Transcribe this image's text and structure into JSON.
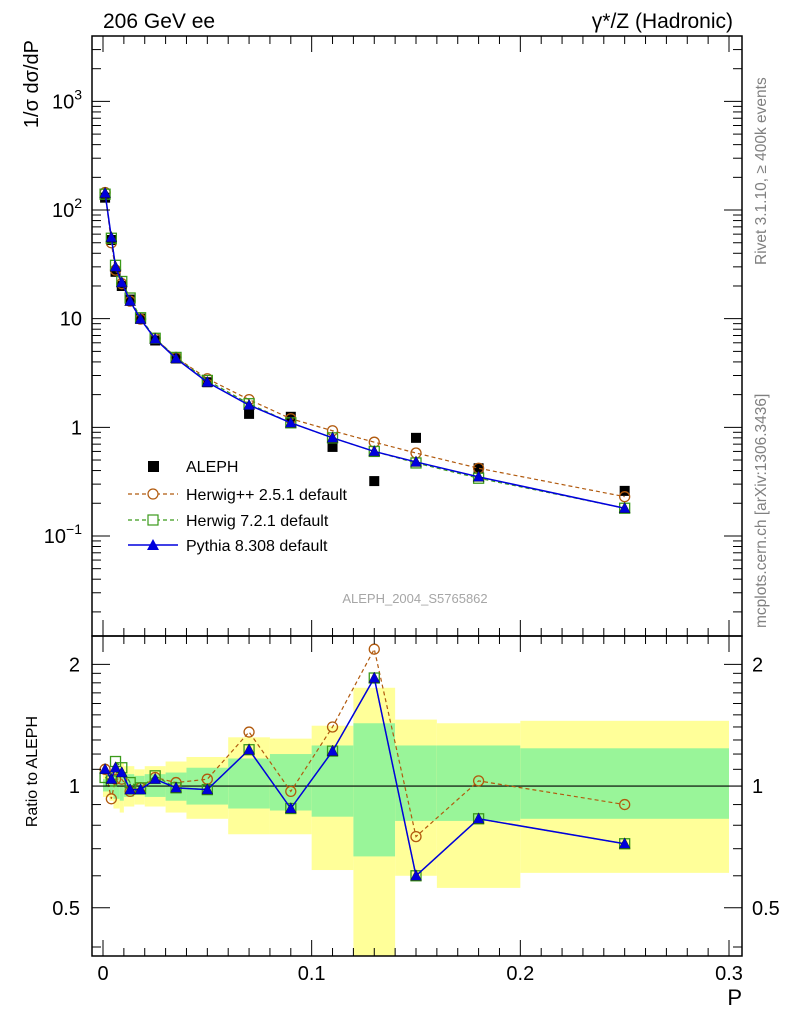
{
  "header": {
    "left_title": "206 GeV ee",
    "right_title": "γ*/Z (Hadronic)"
  },
  "side_labels": {
    "rivet": "Rivet 3.1.10, ≥ 400k events",
    "mcplots": "mcplots.cern.ch [arXiv:1306.3436]"
  },
  "watermark": "ALEPH_2004_S5765862",
  "colors": {
    "aleph": "#000000",
    "herwigpp": "#b15a0e",
    "herwig7": "#3b9a1a",
    "pythia": "#0000dd",
    "band_inner": "#99f599",
    "band_outer": "#ffff99"
  },
  "chart_data": [
    {
      "type": "scatter",
      "panel": "main",
      "yscale": "log",
      "ylabel": "1/σ  dσ/dP",
      "xlim": [
        0,
        0.3
      ],
      "ylim": [
        0.012,
        4000
      ],
      "ytick_labels": [
        {
          "value": 0.1,
          "base": "10",
          "exp": "−1"
        },
        {
          "value": 1,
          "base": "1",
          "exp": ""
        },
        {
          "value": 10,
          "base": "10",
          "exp": ""
        },
        {
          "value": 100,
          "base": "10",
          "exp": "2"
        },
        {
          "value": 1000,
          "base": "10",
          "exp": "3"
        }
      ],
      "x": [
        0.001,
        0.004,
        0.006,
        0.009,
        0.013,
        0.018,
        0.025,
        0.035,
        0.05,
        0.07,
        0.09,
        0.11,
        0.13,
        0.15,
        0.18,
        0.25
      ],
      "series": [
        {
          "name": "ALEPH",
          "key": "aleph",
          "marker": "square-filled",
          "values": [
            130,
            53,
            27,
            20,
            15,
            10,
            6.3,
            4.3,
            2.6,
            1.33,
            1.25,
            0.66,
            0.32,
            0.8,
            0.42,
            0.26
          ]
        },
        {
          "name": "Herwig++ 2.5.1 default",
          "key": "herwigpp",
          "marker": "circle-open",
          "dash": true,
          "values": [
            145,
            50,
            28,
            21,
            14.5,
            9.9,
            6.6,
            4.4,
            2.8,
            1.8,
            1.2,
            0.93,
            0.73,
            0.58,
            0.42,
            0.23
          ]
        },
        {
          "name": "Herwig 7.2.1 default",
          "key": "herwig7",
          "marker": "square-open",
          "dash": true,
          "values": [
            140,
            55,
            31,
            22,
            15.5,
            10.2,
            6.6,
            4.4,
            2.7,
            1.65,
            1.1,
            0.8,
            0.6,
            0.47,
            0.34,
            0.18
          ]
        },
        {
          "name": "Pythia 8.308 default",
          "key": "pythia",
          "marker": "triangle-filled",
          "dash": false,
          "values": [
            143,
            56,
            30,
            21.5,
            14.5,
            9.9,
            6.5,
            4.3,
            2.6,
            1.6,
            1.1,
            0.8,
            0.6,
            0.48,
            0.35,
            0.18
          ]
        }
      ]
    },
    {
      "type": "line",
      "panel": "ratio",
      "yscale": "log",
      "ylabel": "Ratio to ALEPH",
      "xlabel": "P",
      "xlim": [
        0,
        0.3
      ],
      "ylim": [
        0.38,
        2.35
      ],
      "xtick_labels": [
        {
          "value": 0,
          "label": "0"
        },
        {
          "value": 0.1,
          "label": "0.1"
        },
        {
          "value": 0.2,
          "label": "0.2"
        },
        {
          "value": 0.3,
          "label": "0.3"
        }
      ],
      "ytick_labels": [
        {
          "value": 0.5,
          "label": "0.5"
        },
        {
          "value": 1,
          "label": "1"
        },
        {
          "value": 2,
          "label": "2"
        }
      ],
      "x": [
        0.001,
        0.004,
        0.006,
        0.009,
        0.013,
        0.018,
        0.025,
        0.035,
        0.05,
        0.07,
        0.09,
        0.11,
        0.13,
        0.15,
        0.18,
        0.25
      ],
      "bands": [
        {
          "x0": 0.0,
          "x1": 0.003,
          "inner": [
            0.97,
            1.04
          ],
          "outer": [
            0.94,
            1.07
          ]
        },
        {
          "x0": 0.003,
          "x1": 0.005,
          "inner": [
            0.96,
            1.05
          ],
          "outer": [
            0.92,
            1.09
          ]
        },
        {
          "x0": 0.005,
          "x1": 0.008,
          "inner": [
            0.93,
            1.07
          ],
          "outer": [
            0.88,
            1.12
          ]
        },
        {
          "x0": 0.008,
          "x1": 0.01,
          "inner": [
            0.92,
            1.08
          ],
          "outer": [
            0.86,
            1.14
          ]
        },
        {
          "x0": 0.01,
          "x1": 0.015,
          "inner": [
            0.94,
            1.07
          ],
          "outer": [
            0.89,
            1.12
          ]
        },
        {
          "x0": 0.015,
          "x1": 0.02,
          "inner": [
            0.95,
            1.06
          ],
          "outer": [
            0.9,
            1.1
          ]
        },
        {
          "x0": 0.02,
          "x1": 0.03,
          "inner": [
            0.94,
            1.07
          ],
          "outer": [
            0.89,
            1.12
          ]
        },
        {
          "x0": 0.03,
          "x1": 0.04,
          "inner": [
            0.92,
            1.08
          ],
          "outer": [
            0.86,
            1.15
          ]
        },
        {
          "x0": 0.04,
          "x1": 0.06,
          "inner": [
            0.9,
            1.11
          ],
          "outer": [
            0.83,
            1.18
          ]
        },
        {
          "x0": 0.06,
          "x1": 0.08,
          "inner": [
            0.88,
            1.17
          ],
          "outer": [
            0.76,
            1.32
          ]
        },
        {
          "x0": 0.08,
          "x1": 0.1,
          "inner": [
            0.87,
            1.2
          ],
          "outer": [
            0.76,
            1.31
          ]
        },
        {
          "x0": 0.1,
          "x1": 0.12,
          "inner": [
            0.84,
            1.26
          ],
          "outer": [
            0.62,
            1.41
          ]
        },
        {
          "x0": 0.12,
          "x1": 0.14,
          "inner": [
            0.67,
            1.43
          ],
          "outer": [
            0.38,
            1.75
          ]
        },
        {
          "x0": 0.14,
          "x1": 0.16,
          "inner": [
            0.82,
            1.26
          ],
          "outer": [
            0.6,
            1.46
          ]
        },
        {
          "x0": 0.16,
          "x1": 0.2,
          "inner": [
            0.82,
            1.26
          ],
          "outer": [
            0.56,
            1.43
          ]
        },
        {
          "x0": 0.2,
          "x1": 0.3,
          "inner": [
            0.83,
            1.24
          ],
          "outer": [
            0.61,
            1.45
          ]
        }
      ],
      "series": [
        {
          "name": "Herwig++ 2.5.1 default",
          "key": "herwigpp",
          "marker": "circle-open",
          "dash": true,
          "values": [
            1.1,
            0.93,
            1.04,
            1.04,
            0.97,
            0.99,
            1.05,
            1.02,
            1.04,
            1.36,
            0.97,
            1.4,
            2.18,
            0.75,
            1.03,
            0.9
          ]
        },
        {
          "name": "Herwig 7.2.1 default",
          "key": "herwig7",
          "marker": "square-open",
          "dash": true,
          "values": [
            1.05,
            1.03,
            1.15,
            1.11,
            1.02,
            0.99,
            1.06,
            0.99,
            0.98,
            1.23,
            0.88,
            1.22,
            1.85,
            0.6,
            0.83,
            0.72
          ]
        },
        {
          "name": "Pythia 8.308 default",
          "key": "pythia",
          "marker": "triangle-filled",
          "dash": false,
          "values": [
            1.1,
            1.04,
            1.11,
            1.08,
            0.98,
            0.98,
            1.04,
            0.99,
            0.98,
            1.23,
            0.88,
            1.22,
            1.85,
            0.6,
            0.83,
            0.72
          ]
        }
      ]
    }
  ]
}
